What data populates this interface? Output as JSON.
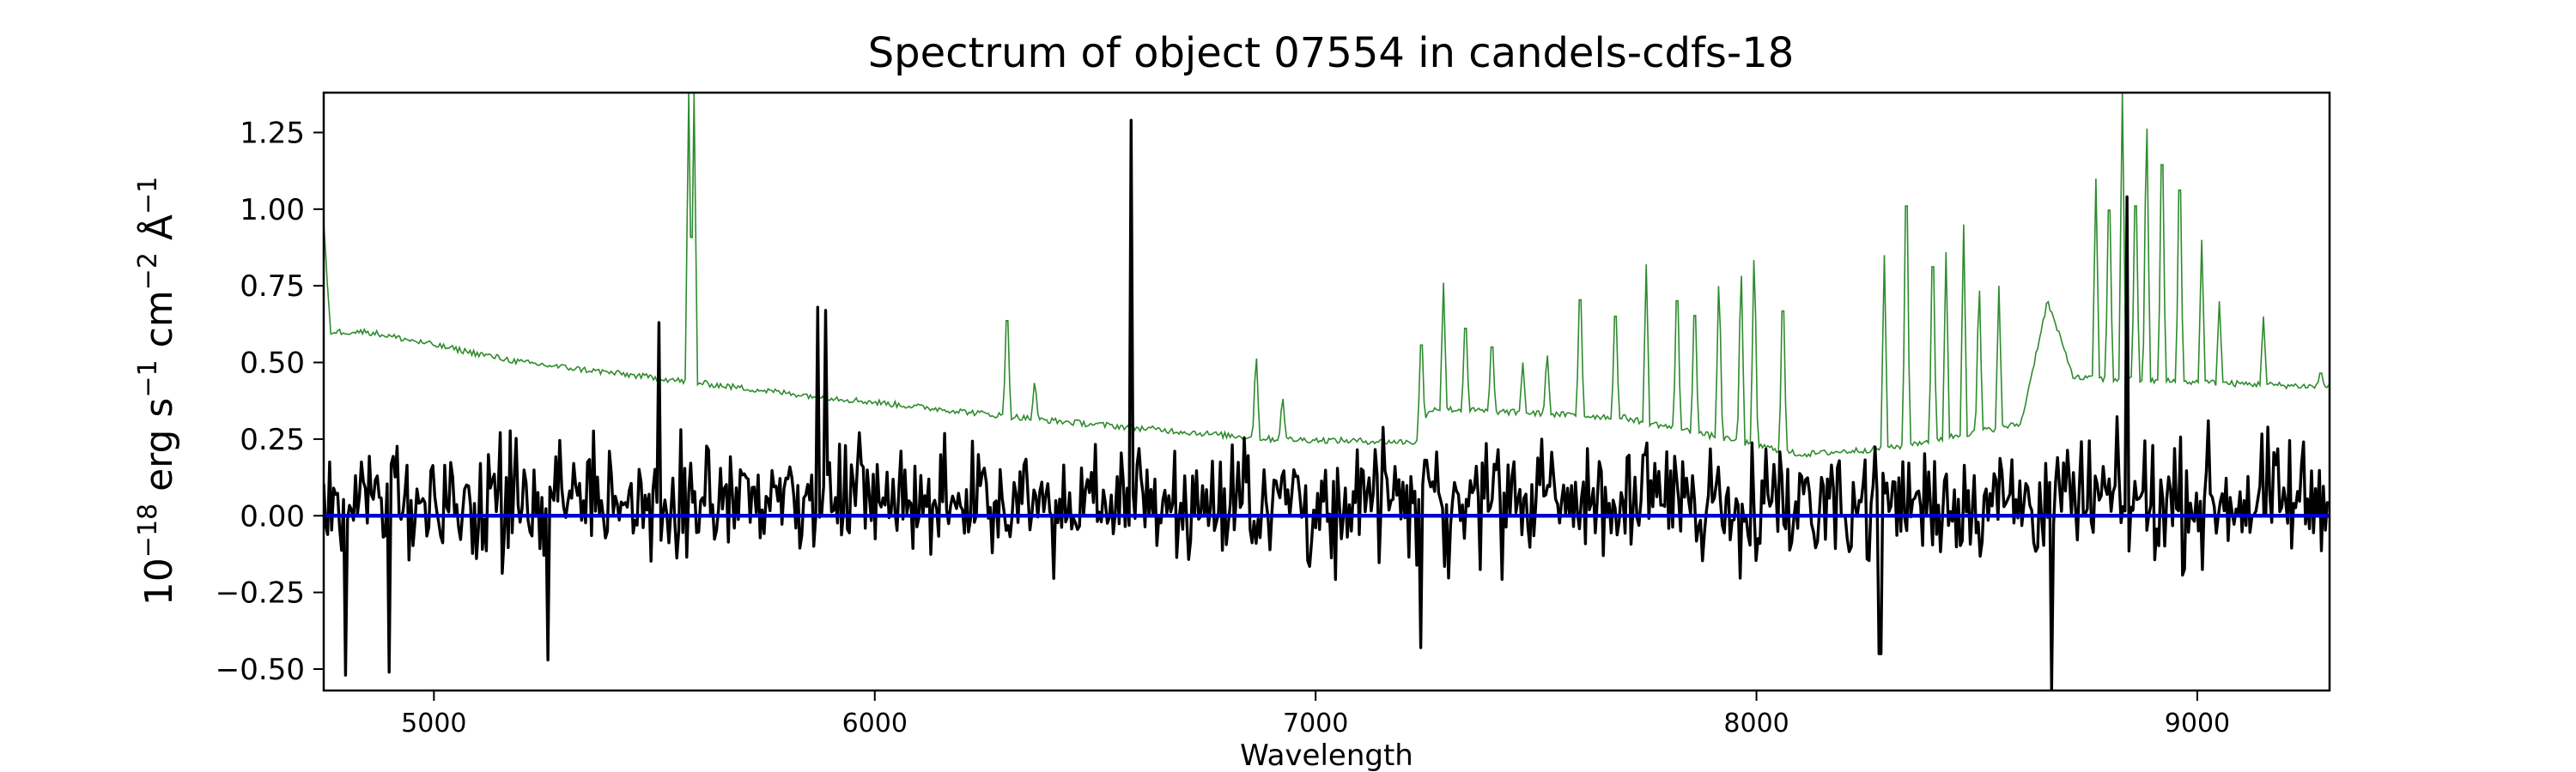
{
  "chart_data": {
    "type": "line",
    "title": "Spectrum of object 07554 in candels-cdfs-18",
    "xlabel": "Wavelength",
    "ylabel_parts": {
      "base": "10",
      "exp1": "−18",
      "unit1": " erg s",
      "exp2": "−1",
      "unit2": " cm",
      "exp3": "−2",
      "unit3": " Å",
      "exp4": "−1"
    },
    "xlim": [
      4750,
      9300
    ],
    "ylim": [
      -0.57,
      1.38
    ],
    "x_ticks": [
      5000,
      6000,
      7000,
      8000,
      9000
    ],
    "x_tick_labels": [
      "5000",
      "6000",
      "7000",
      "8000",
      "9000"
    ],
    "y_ticks": [
      -0.5,
      -0.25,
      0.0,
      0.25,
      0.5,
      0.75,
      1.0,
      1.25
    ],
    "y_tick_labels": [
      "−0.50",
      "−0.25",
      "0.00",
      "0.25",
      "0.50",
      "0.75",
      "1.00",
      "1.25"
    ],
    "grid": false,
    "colors": {
      "flux": "#000000",
      "error": "#2e8b2e",
      "zero": "#0000cc"
    },
    "series": [
      {
        "id": "flux",
        "style": "noisy-line",
        "x_range": [
          4750,
          9300
        ],
        "noise_sigma": 0.18,
        "baseline": 0.05,
        "features": [
          {
            "x": 5510,
            "y": 0.63
          },
          {
            "x": 5870,
            "y": 0.68
          },
          {
            "x": 5890,
            "y": 0.67
          },
          {
            "x": 6580,
            "y": 1.29
          },
          {
            "x": 7240,
            "y": -0.43
          },
          {
            "x": 8280,
            "y": -0.45
          },
          {
            "x": 8670,
            "y": -0.61
          },
          {
            "x": 8840,
            "y": 1.04
          },
          {
            "x": 4800,
            "y": -0.52
          },
          {
            "x": 4900,
            "y": -0.51
          },
          {
            "x": 5260,
            "y": -0.47
          }
        ]
      },
      {
        "id": "error",
        "style": "error-spectrum",
        "continuum": [
          [
            4750,
            0.95
          ],
          [
            4765,
            0.6
          ],
          [
            4850,
            0.6
          ],
          [
            5200,
            0.5
          ],
          [
            5800,
            0.4
          ],
          [
            6400,
            0.31
          ],
          [
            6900,
            0.25
          ],
          [
            7230,
            0.24
          ],
          [
            7260,
            0.35
          ],
          [
            7700,
            0.32
          ],
          [
            8100,
            0.2
          ],
          [
            8300,
            0.22
          ],
          [
            8600,
            0.3
          ],
          [
            8660,
            0.7
          ],
          [
            8720,
            0.45
          ],
          [
            9300,
            0.42
          ]
        ],
        "spikes": [
          {
            "x": 5578,
            "y": 1.38
          },
          {
            "x": 5590,
            "y": 1.38
          },
          {
            "x": 6300,
            "y": 0.74
          },
          {
            "x": 6363,
            "y": 0.45
          },
          {
            "x": 6865,
            "y": 0.55
          },
          {
            "x": 6925,
            "y": 0.4
          },
          {
            "x": 7240,
            "y": 0.65
          },
          {
            "x": 7290,
            "y": 0.76
          },
          {
            "x": 7340,
            "y": 0.7
          },
          {
            "x": 7400,
            "y": 0.62
          },
          {
            "x": 7470,
            "y": 0.5
          },
          {
            "x": 7525,
            "y": 0.55
          },
          {
            "x": 7600,
            "y": 0.83
          },
          {
            "x": 7680,
            "y": 0.76
          },
          {
            "x": 7750,
            "y": 0.82
          },
          {
            "x": 7820,
            "y": 0.84
          },
          {
            "x": 7860,
            "y": 0.78
          },
          {
            "x": 7915,
            "y": 0.82
          },
          {
            "x": 7965,
            "y": 0.86
          },
          {
            "x": 7995,
            "y": 0.92
          },
          {
            "x": 8060,
            "y": 0.82
          },
          {
            "x": 8290,
            "y": 0.85
          },
          {
            "x": 8340,
            "y": 1.27
          },
          {
            "x": 8400,
            "y": 1.0
          },
          {
            "x": 8430,
            "y": 0.86
          },
          {
            "x": 8470,
            "y": 0.95
          },
          {
            "x": 8505,
            "y": 0.8
          },
          {
            "x": 8550,
            "y": 0.75
          },
          {
            "x": 8770,
            "y": 1.1
          },
          {
            "x": 8800,
            "y": 1.18
          },
          {
            "x": 8830,
            "y": 1.38
          },
          {
            "x": 8860,
            "y": 1.2
          },
          {
            "x": 8885,
            "y": 1.38
          },
          {
            "x": 8920,
            "y": 1.38
          },
          {
            "x": 8960,
            "y": 1.27
          },
          {
            "x": 9010,
            "y": 0.9
          },
          {
            "x": 9050,
            "y": 0.7
          },
          {
            "x": 9150,
            "y": 0.65
          },
          {
            "x": 9280,
            "y": 0.48
          }
        ]
      },
      {
        "id": "zero",
        "style": "line",
        "x": [
          4750,
          9300
        ],
        "y": [
          0.0,
          0.0
        ]
      }
    ]
  }
}
